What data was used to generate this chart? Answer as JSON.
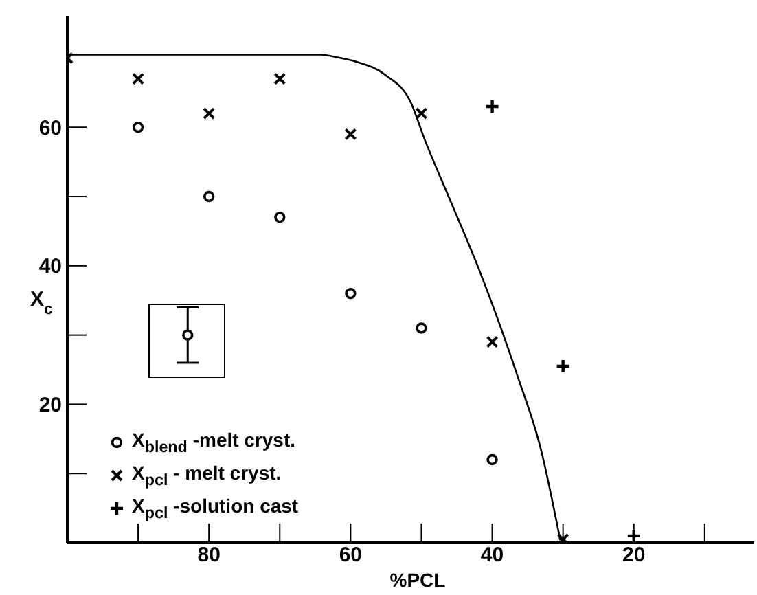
{
  "chart_data": {
    "type": "scatter",
    "xlabel": "%PCL",
    "ylabel": "X$_{c}$",
    "xlim": [
      100,
      3
    ],
    "ylim": [
      0,
      76
    ],
    "xticks": [
      {
        "value": 90,
        "label": null
      },
      80,
      {
        "value": 70,
        "label": null
      },
      60,
      {
        "value": 50,
        "label": null
      },
      40,
      {
        "value": 30,
        "label": null
      },
      20,
      {
        "value": 10,
        "label": null
      }
    ],
    "yticks": [
      {
        "value": 10,
        "label": null
      },
      20,
      {
        "value": 30,
        "label": null
      },
      40,
      {
        "value": 50,
        "label": null
      },
      60
    ],
    "grid": false,
    "legend": "bottom left",
    "series": [
      {
        "name": "X$_{blend}$ -melt cryst.",
        "marker": "circle",
        "color": "#000000",
        "x": [
          90,
          80,
          70,
          60,
          50,
          40
        ],
        "values": [
          60,
          50,
          47,
          36,
          31,
          12
        ]
      },
      {
        "name": "X$_{pcl}$ - melt cryst.",
        "marker": "x",
        "color": "#000000",
        "x": [
          100,
          90,
          80,
          70,
          60,
          50,
          40,
          30
        ],
        "values": [
          70,
          67,
          62,
          67,
          59,
          62,
          29,
          0.5
        ]
      },
      {
        "name": "X$_{pcl}$ -solution cast",
        "marker": "cross",
        "color": "#000000",
        "x": [
          40,
          30,
          20
        ],
        "values": [
          63,
          25.5,
          1
        ]
      },
      {
        "marker": "circle",
        "color": "#000000",
        "x": [
          83
        ],
        "values": [
          30
        ],
        "errors": [
          [
            26,
            34
          ]
        ]
      },
      {
        "type": "line",
        "marker": "none",
        "line_style": "solid",
        "color": "#000000",
        "x": [
          100,
          64.2,
          61.9,
          59.3,
          55,
          51.5,
          49.6,
          45.7,
          41.8,
          36.4,
          33.1,
          30.4
        ],
        "values": [
          70.5,
          70.5,
          70.1,
          69.5,
          67.5,
          63.6,
          58.4,
          48.9,
          39.3,
          24,
          13.4,
          0.4
        ]
      }
    ]
  }
}
